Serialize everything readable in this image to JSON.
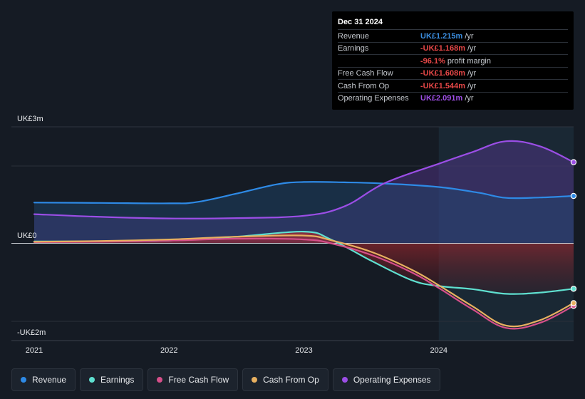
{
  "tooltip": {
    "date": "Dec 31 2024",
    "rows": [
      {
        "label": "Revenue",
        "value": "UK£1.215m",
        "unit": "/yr",
        "color": "#3b8ee0"
      },
      {
        "label": "Earnings",
        "value": "-UK£1.168m",
        "unit": "/yr",
        "color": "#e84848"
      },
      {
        "label": "",
        "value": "-96.1%",
        "unit": "profit margin",
        "color": "#e84848"
      },
      {
        "label": "Free Cash Flow",
        "value": "-UK£1.608m",
        "unit": "/yr",
        "color": "#e84848"
      },
      {
        "label": "Cash From Op",
        "value": "-UK£1.544m",
        "unit": "/yr",
        "color": "#e84848"
      },
      {
        "label": "Operating Expenses",
        "value": "UK£2.091m",
        "unit": "/yr",
        "color": "#a050e8"
      }
    ]
  },
  "legend": [
    {
      "label": "Revenue",
      "color": "#2e8ae6"
    },
    {
      "label": "Earnings",
      "color": "#5fe0d0"
    },
    {
      "label": "Free Cash Flow",
      "color": "#d64f8a"
    },
    {
      "label": "Cash From Op",
      "color": "#e8b060"
    },
    {
      "label": "Operating Expenses",
      "color": "#9b4ee6"
    }
  ],
  "chart_data": {
    "type": "line",
    "title": "",
    "y_labels": {
      "top": "UK£3m",
      "zero": "UK£0",
      "bottom": "-UK£2m"
    },
    "ylim": [
      -2.5,
      3.0
    ],
    "xlim": [
      2020.83,
      2025.0
    ],
    "x_ticks": [
      {
        "value": 2021.0,
        "label": "2021"
      },
      {
        "value": 2022.0,
        "label": "2022"
      },
      {
        "value": 2023.0,
        "label": "2023"
      },
      {
        "value": 2024.0,
        "label": "2024"
      }
    ],
    "forecast_start": 2024.0,
    "series": [
      {
        "name": "Revenue",
        "color": "#2e8ae6",
        "x": [
          2021.0,
          2021.5,
          2022.0,
          2022.2,
          2022.5,
          2022.8,
          2023.0,
          2023.3,
          2023.6,
          2024.0,
          2024.3,
          2024.5,
          2024.75,
          2025.0
        ],
        "y": [
          1.05,
          1.04,
          1.03,
          1.06,
          1.28,
          1.52,
          1.58,
          1.57,
          1.54,
          1.45,
          1.3,
          1.17,
          1.18,
          1.22
        ]
      },
      {
        "name": "Operating Expenses",
        "color": "#9b4ee6",
        "x": [
          2021.0,
          2021.5,
          2022.0,
          2022.5,
          2023.0,
          2023.3,
          2023.6,
          2024.0,
          2024.25,
          2024.5,
          2024.75,
          2025.0
        ],
        "y": [
          0.75,
          0.68,
          0.64,
          0.65,
          0.71,
          0.95,
          1.55,
          2.05,
          2.35,
          2.63,
          2.5,
          2.09
        ]
      },
      {
        "name": "Earnings",
        "color": "#5fe0d0",
        "x": [
          2021.0,
          2021.5,
          2022.0,
          2022.5,
          2023.0,
          2023.2,
          2023.5,
          2023.8,
          2024.0,
          2024.25,
          2024.5,
          2024.75,
          2025.0
        ],
        "y": [
          0.05,
          0.05,
          0.07,
          0.17,
          0.3,
          0.1,
          -0.45,
          -0.95,
          -1.1,
          -1.18,
          -1.3,
          -1.27,
          -1.17
        ]
      },
      {
        "name": "Free Cash Flow",
        "color": "#d64f8a",
        "x": [
          2021.0,
          2021.5,
          2022.0,
          2022.5,
          2023.0,
          2023.2,
          2023.5,
          2023.8,
          2024.0,
          2024.25,
          2024.5,
          2024.75,
          2025.0
        ],
        "y": [
          0.03,
          0.04,
          0.07,
          0.12,
          0.1,
          0.0,
          -0.3,
          -0.75,
          -1.15,
          -1.7,
          -2.18,
          -2.05,
          -1.61
        ]
      },
      {
        "name": "Cash From Op",
        "color": "#e8b060",
        "x": [
          2021.0,
          2021.5,
          2022.0,
          2022.5,
          2023.0,
          2023.2,
          2023.5,
          2023.8,
          2024.0,
          2024.25,
          2024.5,
          2024.75,
          2025.0
        ],
        "y": [
          0.04,
          0.06,
          0.1,
          0.17,
          0.2,
          0.08,
          -0.22,
          -0.68,
          -1.08,
          -1.62,
          -2.12,
          -1.98,
          -1.54
        ]
      }
    ]
  }
}
